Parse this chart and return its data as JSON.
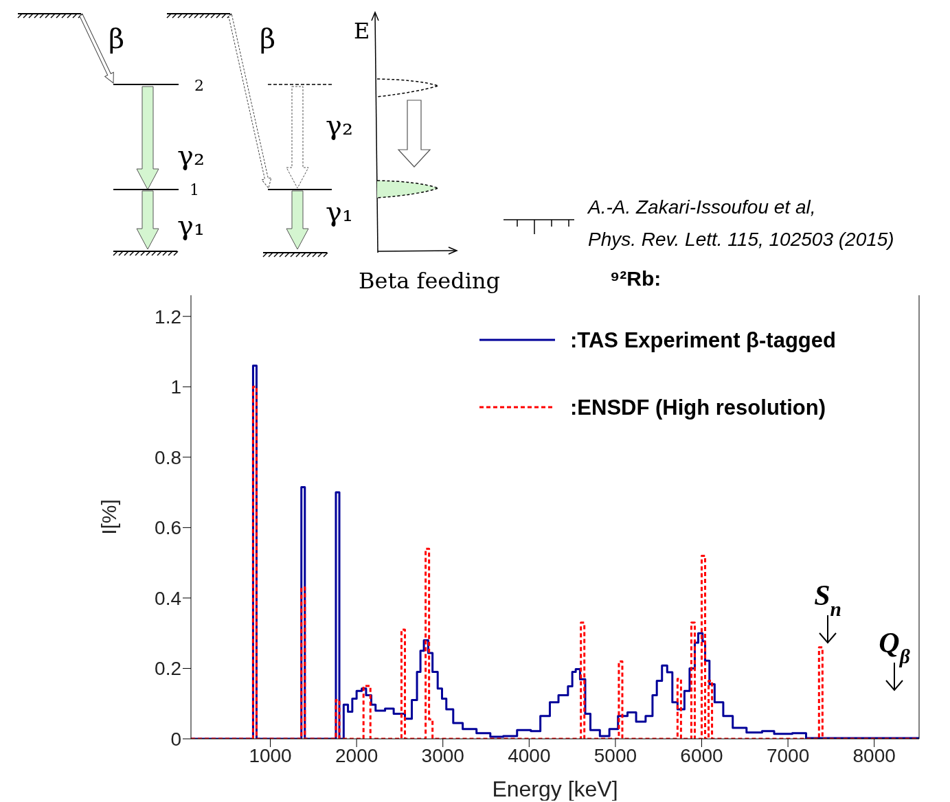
{
  "chart_data": {
    "type": "step",
    "title": "⁹²Rb:",
    "xlabel": "Energy [keV]",
    "ylabel": "I[%]",
    "xlim": [
      80,
      8520
    ],
    "ylim": [
      0,
      1.26
    ],
    "xticks": [
      1000,
      2000,
      3000,
      4000,
      5000,
      6000,
      7000,
      8000
    ],
    "yticks": [
      0,
      0.2,
      0.4,
      0.6,
      0.8,
      1,
      1.2
    ],
    "legend": "top right",
    "series": [
      {
        "name": ":TAS Experiment β-tagged",
        "color": "#000099",
        "line_style": "solid",
        "x": [
          80,
          800,
          840,
          1360,
          1400,
          1760,
          1800,
          1850,
          1900,
          1950,
          2000,
          2060,
          2110,
          2170,
          2220,
          2330,
          2430,
          2560,
          2640,
          2700,
          2740,
          2780,
          2830,
          2880,
          2940,
          2990,
          3040,
          3120,
          3230,
          3390,
          3550,
          3700,
          3860,
          4020,
          4130,
          4240,
          4340,
          4450,
          4500,
          4540,
          4590,
          4650,
          4710,
          4820,
          4930,
          5030,
          5140,
          5240,
          5350,
          5430,
          5480,
          5540,
          5600,
          5660,
          5720,
          5800,
          5860,
          5920,
          5960,
          6010,
          6040,
          6090,
          6150,
          6250,
          6360,
          6520,
          6700,
          6840,
          7050,
          7210,
          8520
        ],
        "values": [
          0,
          1.06,
          0,
          0.715,
          0,
          0.7,
          0,
          0.097,
          0.077,
          0.114,
          0.136,
          0.143,
          0.124,
          0.097,
          0.08,
          0.086,
          0.071,
          0.057,
          0.11,
          0.19,
          0.25,
          0.28,
          0.244,
          0.19,
          0.143,
          0.114,
          0.084,
          0.045,
          0.028,
          0.016,
          0.006,
          0.008,
          0.025,
          0.022,
          0.065,
          0.104,
          0.124,
          0.149,
          0.19,
          0.198,
          0.169,
          0.071,
          0.025,
          0.008,
          0.028,
          0.065,
          0.075,
          0.049,
          0.065,
          0.124,
          0.165,
          0.208,
          0.189,
          0.104,
          0.084,
          0.136,
          0.2,
          0.273,
          0.3,
          0.277,
          0.222,
          0.155,
          0.104,
          0.065,
          0.031,
          0.018,
          0.022,
          0.014,
          0.016,
          0.002,
          0
        ]
      },
      {
        "name": ":ENSDF (High resolution)",
        "color": "#ff0000",
        "line_style": "dashed",
        "x": [
          80,
          800,
          840,
          1360,
          1400,
          1760,
          1800,
          2080,
          2160,
          2520,
          2560,
          2800,
          2840,
          2880,
          4600,
          4640,
          5040,
          5080,
          5720,
          5760,
          5880,
          5920,
          6000,
          6040,
          6080,
          6120,
          7360,
          7400,
          8520
        ],
        "values": [
          0,
          1.0,
          0,
          0.43,
          0,
          0.11,
          0,
          0.15,
          0,
          0.31,
          0,
          0.54,
          0.055,
          0,
          0.33,
          0,
          0.22,
          0,
          0.17,
          0,
          0.33,
          0,
          0.52,
          0,
          0.165,
          0,
          0.26,
          0,
          0
        ]
      }
    ],
    "annotations": [
      "β",
      "β",
      "2",
      "1",
      "γ₂",
      "γ₁",
      "γ₂",
      "γ₁",
      "E",
      "Beta feeding",
      "A.-A. Zakari-Issoufou et al,",
      "Phys. Rev. Lett. 115, 102503 (2015)",
      "S$_{n}$",
      "Q$_{β}$"
    ]
  }
}
